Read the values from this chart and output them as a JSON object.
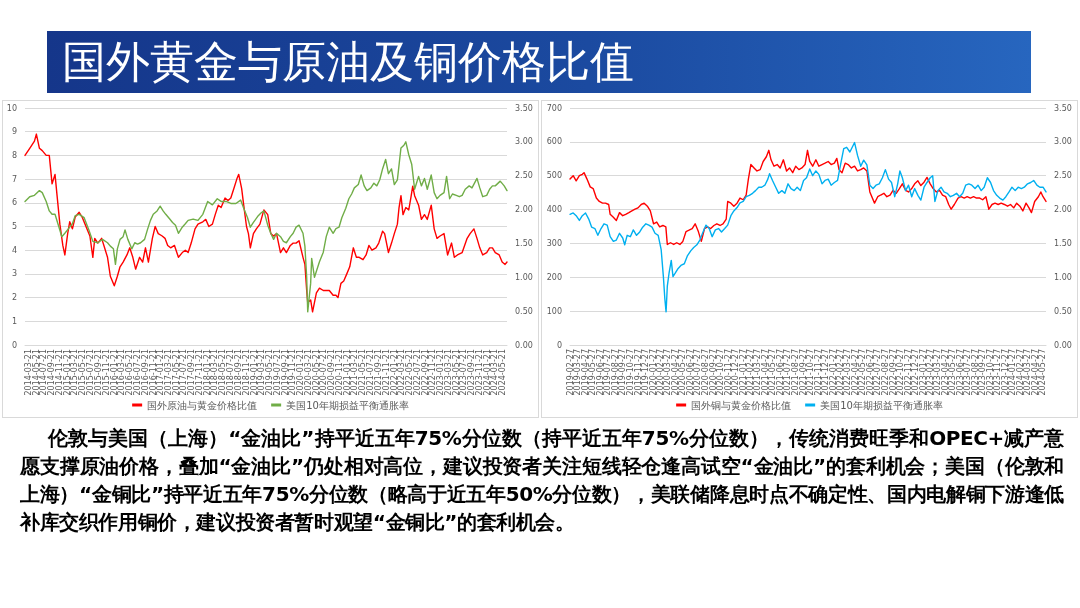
{
  "chart_data": [
    {
      "type": "line",
      "title": "国外黄金与原油及铜价格比值",
      "xlim": [
        "2014-02-23",
        "2024-06-23"
      ],
      "xticks": [
        "2014-03-21",
        "2014-05-21",
        "2014-07-21",
        "2014-09-21",
        "2014-11-21",
        "2015-01-21",
        "2015-03-21",
        "2015-05-21",
        "2015-07-21",
        "2015-09-21",
        "2015-11-21",
        "2016-01-21",
        "2016-03-21",
        "2016-05-21",
        "2016-07-21",
        "2016-09-21",
        "2016-11-21",
        "2017-01-21",
        "2017-03-21",
        "2017-05-21",
        "2017-07-21",
        "2017-09-21",
        "2017-11-21",
        "2018-01-21",
        "2018-03-21",
        "2018-05-21",
        "2018-07-21",
        "2018-09-21",
        "2018-11-21",
        "2019-01-21",
        "2019-03-21",
        "2019-05-21",
        "2019-07-21",
        "2019-09-21",
        "2019-11-21",
        "2020-01-21",
        "2020-03-21",
        "2020-05-21",
        "2020-07-21",
        "2020-09-21",
        "2020-11-21",
        "2021-01-21",
        "2021-03-21",
        "2021-05-21",
        "2021-07-21",
        "2021-09-21",
        "2021-11-21",
        "2022-01-21",
        "2022-03-21",
        "2022-05-21",
        "2022-07-21",
        "2022-09-21",
        "2022-11-21",
        "2023-01-21",
        "2023-03-21",
        "2023-05-21",
        "2023-07-21",
        "2023-09-21",
        "2023-11-21",
        "2024-01-21",
        "2024-03-21",
        "2024-05-21"
      ],
      "ylim": [
        0,
        10
      ],
      "yticks": [
        0,
        1,
        2,
        3,
        4,
        5,
        6,
        7,
        8,
        9,
        10
      ],
      "y2lim": [
        0,
        3.5
      ],
      "y2ticks": [
        {
          "value": 0,
          "label": "0.00"
        },
        {
          "value": 0.5,
          "label": "0.50"
        },
        {
          "value": 1,
          "label": "1.00"
        },
        {
          "value": 1.5,
          "label": "1.50"
        },
        {
          "value": 2,
          "label": "2.00"
        },
        {
          "value": 2.5,
          "label": "2.50"
        },
        {
          "value": 3,
          "label": "3.00"
        },
        {
          "value": 3.5,
          "label": "3.50"
        }
      ],
      "grid": "y",
      "legend": "bottom",
      "series": [
        {
          "name": "国外原油与黄金价格比值",
          "color": "#ff0000",
          "x": [
            "2014-02-23",
            "2014-04-01",
            "2014-05-08",
            "2014-05-23",
            "2014-06-16",
            "2014-07-08",
            "2014-08-08",
            "2014-09-01",
            "2014-09-23",
            "2014-10-16",
            "2014-11-01",
            "2014-11-23",
            "2014-12-16",
            "2015-01-01",
            "2015-01-23",
            "2015-02-08",
            "2015-03-01",
            "2015-03-23",
            "2015-04-23",
            "2015-05-16",
            "2015-06-08",
            "2015-07-16",
            "2015-08-08",
            "2015-08-23",
            "2015-09-16",
            "2015-10-16",
            "2015-11-08",
            "2015-12-01",
            "2015-12-23",
            "2016-01-23",
            "2016-02-16",
            "2016-03-08",
            "2016-04-01",
            "2016-05-01",
            "2016-05-23",
            "2016-06-16",
            "2016-07-08",
            "2016-08-08",
            "2016-09-01",
            "2016-09-23",
            "2016-10-16",
            "2016-11-16",
            "2016-12-08",
            "2017-01-01",
            "2017-02-01",
            "2017-02-23",
            "2017-03-16",
            "2017-04-08",
            "2017-05-08",
            "2017-06-08",
            "2017-07-08",
            "2017-08-01",
            "2017-08-23",
            "2017-09-16",
            "2017-10-16",
            "2017-11-08",
            "2017-12-16",
            "2018-01-08",
            "2018-02-01",
            "2018-03-01",
            "2018-03-23",
            "2018-04-16",
            "2018-05-08",
            "2018-06-08",
            "2018-07-01",
            "2018-07-23",
            "2018-08-16",
            "2018-09-08",
            "2018-09-23",
            "2018-10-16",
            "2018-11-01",
            "2018-11-23",
            "2018-12-08",
            "2018-12-23",
            "2019-01-16",
            "2019-02-08",
            "2019-03-08",
            "2019-04-08",
            "2019-05-08",
            "2019-06-01",
            "2019-06-23",
            "2019-07-16",
            "2019-08-16",
            "2019-09-08",
            "2019-10-01",
            "2019-11-01",
            "2019-11-23",
            "2019-12-16",
            "2020-01-08",
            "2020-02-08",
            "2020-02-23",
            "2020-03-08",
            "2020-03-16",
            "2020-04-08",
            "2020-04-23",
            "2020-05-08",
            "2020-05-23",
            "2020-06-16",
            "2020-07-16",
            "2020-08-08",
            "2020-09-01",
            "2020-10-01",
            "2020-10-23",
            "2020-11-08",
            "2020-12-01",
            "2020-12-23",
            "2021-01-16",
            "2021-02-08",
            "2021-03-08",
            "2021-04-01",
            "2021-04-23",
            "2021-05-23",
            "2021-06-16",
            "2021-07-08",
            "2021-08-01",
            "2021-09-01",
            "2021-09-23",
            "2021-10-23",
            "2021-11-08",
            "2021-12-08",
            "2022-01-01",
            "2022-01-23",
            "2022-02-16",
            "2022-03-01",
            "2022-03-16",
            "2022-04-01",
            "2022-04-23",
            "2022-05-16",
            "2022-06-01",
            "2022-06-16",
            "2022-07-01",
            "2022-08-01",
            "2022-08-23",
            "2022-09-16",
            "2022-10-08",
            "2022-11-08",
            "2022-12-01",
            "2022-12-23",
            "2023-01-16",
            "2023-02-16",
            "2023-03-16",
            "2023-04-16",
            "2023-05-08",
            "2023-06-01",
            "2023-07-08",
            "2023-08-16",
            "2023-09-08",
            "2023-10-08",
            "2023-11-01",
            "2023-11-23",
            "2023-12-16",
            "2024-01-16",
            "2024-02-08",
            "2024-03-01",
            "2024-03-23",
            "2024-04-23",
            "2024-05-16",
            "2024-06-08",
            "2024-06-23"
          ],
          "values": [
            8.0,
            8.3,
            8.6,
            8.9,
            8.3,
            8.2,
            8.0,
            8.0,
            6.8,
            7.2,
            6.3,
            5.1,
            4.2,
            3.8,
            4.7,
            5.2,
            4.9,
            5.4,
            5.6,
            5.4,
            5.1,
            4.6,
            3.7,
            4.5,
            4.3,
            4.5,
            4.1,
            3.7,
            2.9,
            2.5,
            2.9,
            3.3,
            3.5,
            3.8,
            4.1,
            3.7,
            3.2,
            3.7,
            3.5,
            4.1,
            3.5,
            4.5,
            5.0,
            4.7,
            4.6,
            4.5,
            4.2,
            4.1,
            4.2,
            3.7,
            3.9,
            4.0,
            3.9,
            4.3,
            4.9,
            5.1,
            5.2,
            5.3,
            5.0,
            5.1,
            5.5,
            5.9,
            5.8,
            6.2,
            6.1,
            6.2,
            6.6,
            7.0,
            7.2,
            6.6,
            5.9,
            5.0,
            4.7,
            4.1,
            4.7,
            4.9,
            5.1,
            5.7,
            5.5,
            4.7,
            4.6,
            4.7,
            3.9,
            4.1,
            3.9,
            4.2,
            4.3,
            4.3,
            4.4,
            3.7,
            3.4,
            2.3,
            1.8,
            1.9,
            1.4,
            1.8,
            2.2,
            2.4,
            2.3,
            2.3,
            2.3,
            2.1,
            2.1,
            2.0,
            2.6,
            2.7,
            3.0,
            3.3,
            4.1,
            3.7,
            3.7,
            3.6,
            3.8,
            4.2,
            4.0,
            4.1,
            4.3,
            4.8,
            4.7,
            3.9,
            4.3,
            4.7,
            5.1,
            5.8,
            6.3,
            5.5,
            5.8,
            5.7,
            6.2,
            6.7,
            6.3,
            5.9,
            5.3,
            5.5,
            5.3,
            5.9,
            4.9,
            4.5,
            4.6,
            4.7,
            3.8,
            4.3,
            3.7,
            3.8,
            3.9,
            4.5,
            4.7,
            4.9,
            4.5,
            4.1,
            3.8,
            3.9,
            4.1,
            4.1,
            3.9,
            3.8,
            3.5,
            3.4,
            3.5
          ]
        },
        {
          "name": "美国10年期损益平衡通胀率",
          "color": "#70ad47",
          "axis": "y2",
          "x": [
            "2014-02-23",
            "2014-04-01",
            "2014-05-08",
            "2014-06-16",
            "2014-07-08",
            "2014-08-08",
            "2014-09-01",
            "2014-09-23",
            "2014-10-16",
            "2014-11-16",
            "2014-12-08",
            "2015-01-01",
            "2015-02-08",
            "2015-03-01",
            "2015-03-23",
            "2015-04-23",
            "2015-06-01",
            "2015-07-08",
            "2015-08-08",
            "2015-09-16",
            "2015-10-23",
            "2015-12-01",
            "2015-12-23",
            "2016-01-16",
            "2016-02-01",
            "2016-02-16",
            "2016-03-08",
            "2016-04-01",
            "2016-04-16",
            "2016-05-08",
            "2016-06-08",
            "2016-07-01",
            "2016-07-23",
            "2016-08-16",
            "2016-09-16",
            "2016-10-08",
            "2016-11-01",
            "2016-11-23",
            "2016-12-23",
            "2017-01-16",
            "2017-02-08",
            "2017-03-01",
            "2017-04-01",
            "2017-04-23",
            "2017-05-16",
            "2017-06-08",
            "2017-07-08",
            "2017-08-01",
            "2017-08-23",
            "2017-10-01",
            "2017-11-08",
            "2017-12-16",
            "2018-01-23",
            "2018-03-01",
            "2018-04-08",
            "2018-05-08",
            "2018-06-16",
            "2018-07-23",
            "2018-09-01",
            "2018-10-08",
            "2018-11-01",
            "2018-12-01",
            "2018-12-23",
            "2019-01-16",
            "2019-02-23",
            "2019-03-16",
            "2019-04-08",
            "2019-05-08",
            "2019-06-01",
            "2019-06-23",
            "2019-07-16",
            "2019-08-16",
            "2019-09-08",
            "2019-10-01",
            "2019-11-01",
            "2019-11-23",
            "2019-12-16",
            "2020-01-08",
            "2020-02-08",
            "2020-02-23",
            "2020-03-08",
            "2020-03-16",
            "2020-04-08",
            "2020-04-16",
            "2020-05-08",
            "2020-05-23",
            "2020-06-16",
            "2020-07-16",
            "2020-08-08",
            "2020-09-01",
            "2020-10-01",
            "2020-10-23",
            "2020-11-16",
            "2020-12-08",
            "2021-01-08",
            "2021-02-01",
            "2021-02-23",
            "2021-03-16",
            "2021-04-16",
            "2021-05-08",
            "2021-06-01",
            "2021-06-23",
            "2021-07-23",
            "2021-08-16",
            "2021-09-08",
            "2021-10-01",
            "2021-10-23",
            "2021-11-16",
            "2021-12-08",
            "2022-01-01",
            "2022-01-23",
            "2022-02-16",
            "2022-03-16",
            "2022-04-08",
            "2022-04-23",
            "2022-05-16",
            "2022-06-08",
            "2022-07-01",
            "2022-08-01",
            "2022-08-23",
            "2022-09-16",
            "2022-10-08",
            "2022-11-08",
            "2022-12-01",
            "2022-12-23",
            "2023-01-16",
            "2023-02-16",
            "2023-03-08",
            "2023-04-01",
            "2023-04-23",
            "2023-05-23",
            "2023-06-16",
            "2023-07-08",
            "2023-08-01",
            "2023-09-01",
            "2023-09-23",
            "2023-11-01",
            "2023-11-23",
            "2023-12-16",
            "2024-01-16",
            "2024-02-08",
            "2024-03-01",
            "2024-03-23",
            "2024-05-01",
            "2024-06-01",
            "2024-06-23"
          ],
          "values": [
            2.12,
            2.19,
            2.21,
            2.28,
            2.25,
            2.12,
            1.98,
            1.93,
            1.93,
            1.74,
            1.6,
            1.65,
            1.74,
            1.79,
            1.91,
            1.93,
            1.88,
            1.7,
            1.53,
            1.51,
            1.56,
            1.51,
            1.46,
            1.42,
            1.19,
            1.42,
            1.56,
            1.6,
            1.7,
            1.56,
            1.42,
            1.51,
            1.49,
            1.51,
            1.56,
            1.7,
            1.84,
            1.93,
            1.98,
            2.05,
            1.98,
            1.93,
            1.86,
            1.81,
            1.77,
            1.65,
            1.74,
            1.79,
            1.84,
            1.86,
            1.84,
            1.93,
            2.12,
            2.07,
            2.16,
            2.12,
            2.12,
            2.09,
            2.09,
            2.14,
            2.02,
            1.88,
            1.74,
            1.81,
            1.91,
            1.95,
            1.98,
            1.77,
            1.65,
            1.56,
            1.65,
            1.6,
            1.53,
            1.51,
            1.6,
            1.65,
            1.74,
            1.77,
            1.65,
            1.46,
            1.0,
            0.49,
            0.91,
            1.28,
            1.0,
            1.09,
            1.23,
            1.37,
            1.6,
            1.74,
            1.65,
            1.72,
            1.74,
            1.88,
            2.02,
            2.16,
            2.23,
            2.32,
            2.37,
            2.51,
            2.35,
            2.28,
            2.32,
            2.39,
            2.35,
            2.44,
            2.6,
            2.74,
            2.53,
            2.6,
            2.37,
            2.44,
            2.91,
            2.95,
            3.0,
            2.81,
            2.67,
            2.3,
            2.49,
            2.35,
            2.46,
            2.3,
            2.51,
            2.25,
            2.16,
            2.21,
            2.25,
            2.49,
            2.16,
            2.23,
            2.21,
            2.19,
            2.21,
            2.3,
            2.35,
            2.32,
            2.46,
            2.32,
            2.19,
            2.21,
            2.3,
            2.35,
            2.35,
            2.42,
            2.35,
            2.28
          ]
        }
      ]
    },
    {
      "type": "line",
      "xlim": [
        "2019-02-24",
        "2024-06-09"
      ],
      "xticks": [
        "2019-02-27",
        "2019-03-27",
        "2019-04-27",
        "2019-05-27",
        "2019-06-27",
        "2019-07-27",
        "2019-08-27",
        "2019-09-27",
        "2019-10-27",
        "2019-11-27",
        "2019-12-27",
        "2020-01-27",
        "2020-02-27",
        "2020-03-27",
        "2020-04-27",
        "2020-05-27",
        "2020-06-27",
        "2020-07-27",
        "2020-08-27",
        "2020-09-27",
        "2020-10-27",
        "2020-11-27",
        "2020-12-27",
        "2021-01-27",
        "2021-02-27",
        "2021-03-27",
        "2021-04-27",
        "2021-05-27",
        "2021-06-27",
        "2021-07-27",
        "2021-08-27",
        "2021-09-27",
        "2021-10-27",
        "2021-11-27",
        "2021-12-27",
        "2022-01-27",
        "2022-02-27",
        "2022-03-27",
        "2022-04-27",
        "2022-05-27",
        "2022-06-27",
        "2022-07-27",
        "2022-08-27",
        "2022-09-27",
        "2022-10-27",
        "2022-11-27",
        "2022-12-27",
        "2023-01-27",
        "2023-02-27",
        "2023-03-27",
        "2023-04-27",
        "2023-05-27",
        "2023-06-27",
        "2023-07-27",
        "2023-08-27",
        "2023-09-27",
        "2023-10-27",
        "2023-11-27",
        "2023-12-27",
        "2024-01-27",
        "2024-02-27",
        "2024-03-27",
        "2024-04-27",
        "2024-05-27"
      ],
      "ylim": [
        0,
        700
      ],
      "yticks": [
        0,
        100,
        200,
        300,
        400,
        500,
        600,
        700
      ],
      "y2lim": [
        0,
        3.5
      ],
      "y2ticks": [
        {
          "value": 0,
          "label": "0.00"
        },
        {
          "value": 0.5,
          "label": "0.50"
        },
        {
          "value": 1,
          "label": "1.00"
        },
        {
          "value": 1.5,
          "label": "1.50"
        },
        {
          "value": 2,
          "label": "2.00"
        },
        {
          "value": 2.5,
          "label": "2.50"
        },
        {
          "value": 3,
          "label": "3.00"
        },
        {
          "value": 3.5,
          "label": "3.50"
        }
      ],
      "grid": "y",
      "legend": "bottom",
      "series": [
        {
          "name": "国外铜与黄金价格比值",
          "color": "#ff0000",
          "x": [
            "2019-02-24",
            "2019-03-09",
            "2019-03-21",
            "2019-04-03",
            "2019-04-15",
            "2019-04-22",
            "2019-05-04",
            "2019-05-17",
            "2019-05-29",
            "2019-06-11",
            "2019-06-23",
            "2019-07-06",
            "2019-07-18",
            "2019-07-31",
            "2019-08-06",
            "2019-08-19",
            "2019-08-31",
            "2019-09-13",
            "2019-09-26",
            "2019-10-08",
            "2019-10-21",
            "2019-11-02",
            "2019-11-15",
            "2019-11-27",
            "2019-12-10",
            "2019-12-22",
            "2020-01-04",
            "2020-01-16",
            "2020-01-29",
            "2020-02-11",
            "2020-02-23",
            "2020-03-07",
            "2020-03-19",
            "2020-03-25",
            "2020-04-07",
            "2020-04-20",
            "2020-05-02",
            "2020-05-15",
            "2020-05-27",
            "2020-06-09",
            "2020-06-21",
            "2020-07-04",
            "2020-07-16",
            "2020-07-29",
            "2020-08-10",
            "2020-08-23",
            "2020-09-04",
            "2020-09-17",
            "2020-09-30",
            "2020-10-12",
            "2020-10-25",
            "2020-11-06",
            "2020-11-19",
            "2020-11-25",
            "2020-12-08",
            "2020-12-20",
            "2021-01-02",
            "2021-01-14",
            "2021-01-27",
            "2021-02-08",
            "2021-02-17",
            "2021-02-27",
            "2021-03-12",
            "2021-03-24",
            "2021-04-06",
            "2021-04-18",
            "2021-05-01",
            "2021-05-11",
            "2021-05-20",
            "2021-06-01",
            "2021-06-14",
            "2021-06-26",
            "2021-07-09",
            "2021-07-22",
            "2021-08-03",
            "2021-08-16",
            "2021-08-28",
            "2021-09-10",
            "2021-09-22",
            "2021-10-05",
            "2021-10-15",
            "2021-10-24",
            "2021-11-05",
            "2021-11-18",
            "2021-11-30",
            "2021-12-13",
            "2021-12-25",
            "2022-01-07",
            "2022-01-19",
            "2022-02-01",
            "2022-02-11",
            "2022-02-20",
            "2022-03-04",
            "2022-03-17",
            "2022-03-29",
            "2022-04-11",
            "2022-04-24",
            "2022-05-06",
            "2022-05-19",
            "2022-05-31",
            "2022-06-13",
            "2022-06-25",
            "2022-07-14",
            "2022-07-27",
            "2022-08-08",
            "2022-08-21",
            "2022-09-02",
            "2022-09-15",
            "2022-09-27",
            "2022-10-10",
            "2022-10-23",
            "2022-11-04",
            "2022-11-17",
            "2022-11-29",
            "2022-12-12",
            "2022-12-24",
            "2023-01-06",
            "2023-01-18",
            "2023-01-31",
            "2023-02-12",
            "2023-02-25",
            "2023-03-09",
            "2023-03-22",
            "2023-04-04",
            "2023-04-16",
            "2023-04-29",
            "2023-05-11",
            "2023-05-21",
            "2023-06-03",
            "2023-06-18",
            "2023-06-30",
            "2023-07-13",
            "2023-07-25",
            "2023-08-07",
            "2023-08-20",
            "2023-09-01",
            "2023-09-14",
            "2023-09-26",
            "2023-10-09",
            "2023-10-21",
            "2023-11-03",
            "2023-11-15",
            "2023-11-28",
            "2023-12-10",
            "2023-12-23",
            "2024-01-05",
            "2024-01-17",
            "2024-01-30",
            "2024-02-11",
            "2024-02-24",
            "2024-03-07",
            "2024-03-20",
            "2024-04-01",
            "2024-04-11",
            "2024-04-24",
            "2024-05-09",
            "2024-05-19",
            "2024-05-28",
            "2024-06-09"
          ],
          "values": [
            490,
            500,
            485,
            500,
            504,
            509,
            490,
            467,
            462,
            434,
            424,
            419,
            419,
            415,
            386,
            377,
            368,
            391,
            382,
            386,
            391,
            396,
            401,
            405,
            415,
            419,
            410,
            396,
            358,
            363,
            349,
            353,
            349,
            297,
            302,
            297,
            302,
            297,
            306,
            335,
            339,
            344,
            358,
            335,
            306,
            344,
            349,
            344,
            353,
            358,
            353,
            358,
            372,
            424,
            419,
            410,
            419,
            434,
            429,
            443,
            490,
            533,
            523,
            514,
            518,
            542,
            556,
            575,
            547,
            528,
            533,
            523,
            547,
            514,
            523,
            509,
            528,
            518,
            523,
            533,
            575,
            542,
            528,
            547,
            528,
            533,
            537,
            542,
            533,
            537,
            551,
            518,
            509,
            537,
            533,
            523,
            528,
            514,
            518,
            523,
            514,
            452,
            419,
            438,
            443,
            448,
            438,
            443,
            457,
            448,
            462,
            476,
            457,
            452,
            462,
            476,
            485,
            471,
            481,
            495,
            476,
            462,
            452,
            457,
            443,
            438,
            415,
            401,
            415,
            434,
            438,
            434,
            438,
            434,
            438,
            434,
            434,
            429,
            438,
            401,
            415,
            419,
            415,
            419,
            415,
            410,
            415,
            405,
            419,
            410,
            396,
            419,
            405,
            391,
            424,
            438,
            452,
            438,
            424
          ]
        },
        {
          "name": "美国10年期损益平衡通胀率",
          "color": "#00b0f0",
          "axis": "y2",
          "x": [
            "2019-02-24",
            "2019-03-09",
            "2019-03-21",
            "2019-04-03",
            "2019-04-15",
            "2019-04-28",
            "2019-05-11",
            "2019-05-23",
            "2019-06-05",
            "2019-06-17",
            "2019-06-30",
            "2019-07-12",
            "2019-07-25",
            "2019-08-06",
            "2019-08-19",
            "2019-08-31",
            "2019-09-13",
            "2019-09-26",
            "2019-10-04",
            "2019-10-14",
            "2019-10-27",
            "2019-11-08",
            "2019-11-21",
            "2019-12-04",
            "2019-12-16",
            "2019-12-29",
            "2020-01-10",
            "2020-01-23",
            "2020-02-04",
            "2020-02-17",
            "2020-02-29",
            "2020-03-09",
            "2020-03-15",
            "2020-03-20",
            "2020-03-25",
            "2020-04-01",
            "2020-04-10",
            "2020-04-17",
            "2020-04-26",
            "2020-05-08",
            "2020-05-21",
            "2020-06-02",
            "2020-06-15",
            "2020-06-28",
            "2020-07-10",
            "2020-07-23",
            "2020-08-04",
            "2020-08-17",
            "2020-08-29",
            "2020-09-11",
            "2020-09-23",
            "2020-10-06",
            "2020-10-19",
            "2020-10-31",
            "2020-11-13",
            "2020-11-25",
            "2020-12-08",
            "2020-12-20",
            "2021-01-02",
            "2021-01-14",
            "2021-01-27",
            "2021-02-08",
            "2021-02-21",
            "2021-03-06",
            "2021-03-18",
            "2021-03-31",
            "2021-04-12",
            "2021-04-25",
            "2021-05-07",
            "2021-05-14",
            "2021-05-26",
            "2021-06-08",
            "2021-06-20",
            "2021-07-03",
            "2021-07-15",
            "2021-07-28",
            "2021-08-09",
            "2021-08-22",
            "2021-09-03",
            "2021-09-16",
            "2021-09-29",
            "2021-10-11",
            "2021-10-24",
            "2021-11-05",
            "2021-11-18",
            "2021-11-30",
            "2021-12-13",
            "2021-12-25",
            "2022-01-07",
            "2022-01-19",
            "2022-02-01",
            "2022-02-14",
            "2022-02-26",
            "2022-03-11",
            "2022-03-23",
            "2022-04-05",
            "2022-04-24",
            "2022-05-06",
            "2022-05-19",
            "2022-05-31",
            "2022-06-13",
            "2022-06-25",
            "2022-07-08",
            "2022-07-20",
            "2022-08-02",
            "2022-08-15",
            "2022-08-27",
            "2022-09-09",
            "2022-09-21",
            "2022-10-04",
            "2022-10-16",
            "2022-10-25",
            "2022-11-04",
            "2022-11-17",
            "2022-11-29",
            "2022-12-12",
            "2022-12-24",
            "2023-01-06",
            "2023-01-18",
            "2023-01-31",
            "2023-02-12",
            "2023-02-25",
            "2023-03-07",
            "2023-03-16",
            "2023-03-28",
            "2023-04-10",
            "2023-04-22",
            "2023-05-05",
            "2023-05-18",
            "2023-05-30",
            "2023-06-12",
            "2023-06-24",
            "2023-07-07",
            "2023-07-19",
            "2023-08-01",
            "2023-08-13",
            "2023-08-26",
            "2023-09-07",
            "2023-09-20",
            "2023-10-02",
            "2023-10-15",
            "2023-10-28",
            "2023-11-09",
            "2023-11-22",
            "2023-12-04",
            "2023-12-17",
            "2023-12-29",
            "2024-01-11",
            "2024-01-23",
            "2024-02-05",
            "2024-02-17",
            "2024-03-01",
            "2024-03-13",
            "2024-03-26",
            "2024-04-08",
            "2024-04-20",
            "2024-05-03",
            "2024-05-15",
            "2024-05-28",
            "2024-06-09"
          ],
          "values": [
            1.93,
            1.95,
            1.91,
            1.84,
            1.91,
            1.95,
            1.86,
            1.74,
            1.72,
            1.62,
            1.72,
            1.79,
            1.77,
            1.6,
            1.53,
            1.55,
            1.65,
            1.58,
            1.48,
            1.62,
            1.6,
            1.7,
            1.62,
            1.67,
            1.74,
            1.79,
            1.77,
            1.74,
            1.65,
            1.62,
            1.41,
            1.01,
            0.68,
            0.49,
            0.87,
            1.06,
            1.25,
            1.01,
            1.06,
            1.13,
            1.18,
            1.2,
            1.32,
            1.39,
            1.44,
            1.48,
            1.55,
            1.67,
            1.77,
            1.72,
            1.6,
            1.7,
            1.72,
            1.67,
            1.72,
            1.77,
            1.91,
            1.98,
            2.03,
            2.1,
            2.12,
            2.19,
            2.21,
            2.24,
            2.28,
            2.33,
            2.33,
            2.36,
            2.45,
            2.53,
            2.43,
            2.33,
            2.24,
            2.28,
            2.24,
            2.38,
            2.31,
            2.28,
            2.33,
            2.28,
            2.43,
            2.47,
            2.6,
            2.5,
            2.57,
            2.52,
            2.38,
            2.43,
            2.45,
            2.36,
            2.4,
            2.43,
            2.66,
            2.9,
            2.92,
            2.85,
            2.99,
            2.8,
            2.64,
            2.73,
            2.66,
            2.36,
            2.31,
            2.36,
            2.38,
            2.47,
            2.59,
            2.45,
            2.4,
            2.19,
            2.38,
            2.57,
            2.47,
            2.28,
            2.36,
            2.19,
            2.31,
            2.21,
            2.14,
            2.33,
            2.4,
            2.47,
            2.5,
            2.12,
            2.28,
            2.33,
            2.26,
            2.24,
            2.19,
            2.21,
            2.24,
            2.19,
            2.24,
            2.36,
            2.38,
            2.36,
            2.31,
            2.36,
            2.28,
            2.33,
            2.47,
            2.4,
            2.28,
            2.21,
            2.17,
            2.14,
            2.19,
            2.26,
            2.33,
            2.28,
            2.33,
            2.31,
            2.33,
            2.38,
            2.4,
            2.43,
            2.36,
            2.33,
            2.33,
            2.26
          ]
        }
      ]
    },
    {
      "type": "other",
      "annotations": [
        "伦敦与美国（上海）“金油比”持平近五年75%分位数（持平近五年75%分位数），传统消费旺季和OPEC+减产意愿支撑原油价格，叠加“金油比”仍处相对高位，建议投资者关注短线轻仓逢高试空“金油比”的套利机会；美国（伦敦和上海）“金铜比”持平近五年75%分位数（略高于近五年50%分位数），美联储降息时点不确定性、国内电解铜下游逢低补库交织作用铜价，建议投资者暂时观望“金铜比”的套利机会。"
      ]
    }
  ]
}
